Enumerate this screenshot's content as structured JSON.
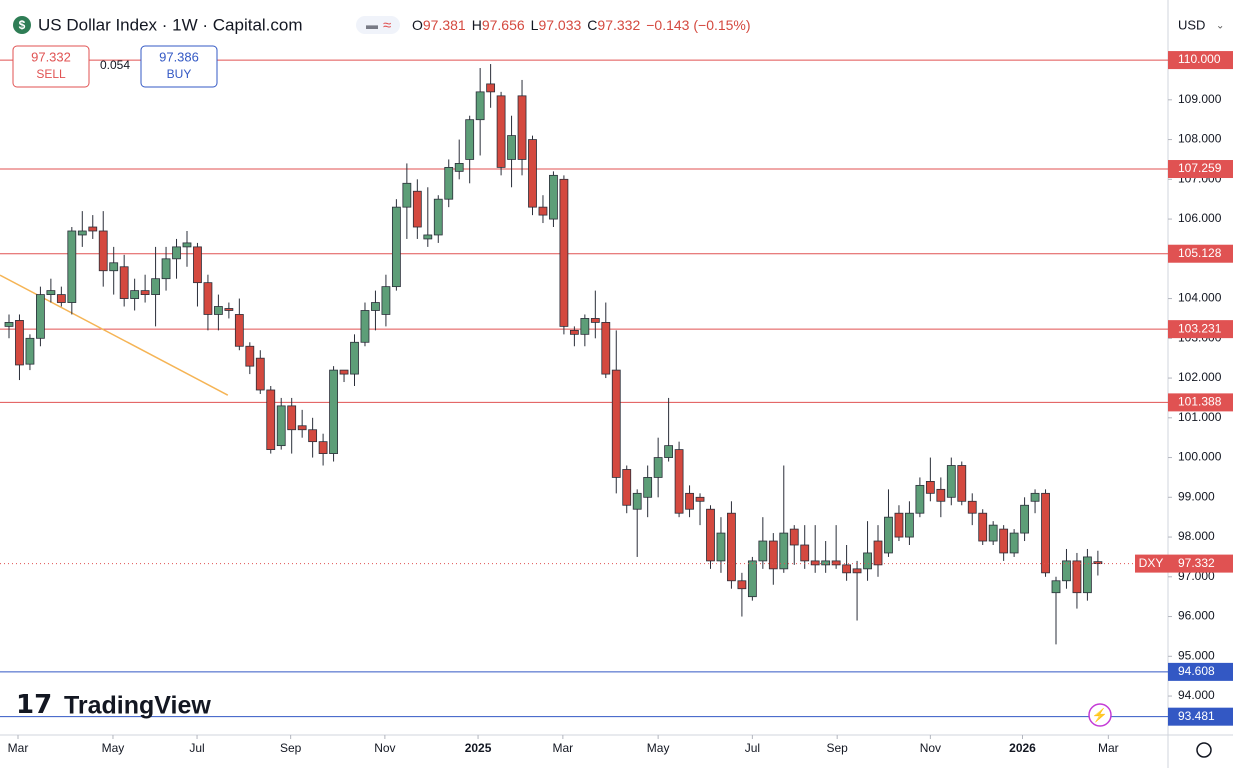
{
  "chart_data": {
    "type": "candlestick",
    "title": "US Dollar Index · 1W · Capital.com",
    "header_ohlc": [
      {
        "label": "O",
        "value": 97.381
      },
      {
        "label": "H",
        "value": 97.656
      },
      {
        "label": "L",
        "value": 97.033
      },
      {
        "label": "C",
        "value": 97.332
      }
    ],
    "header_change": "−0.143 (−0.15%)",
    "sell": {
      "price": 97.332,
      "label": "SELL"
    },
    "spread": 0.054,
    "buy": {
      "price": 97.386,
      "label": "BUY"
    },
    "currency": "USD",
    "brand": "TradingView",
    "up_color": "#5d9e78",
    "down_color": "#d4493f",
    "open": [
      103.3,
      103.45,
      102.35,
      103.0,
      104.1,
      104.1,
      103.9,
      105.6,
      105.8,
      105.7,
      104.7,
      104.8,
      104.0,
      104.2,
      104.1,
      104.5,
      105.0,
      105.3,
      105.3,
      104.4,
      103.6,
      103.75,
      103.6,
      102.8,
      102.5,
      101.7,
      100.3,
      101.3,
      100.8,
      100.7,
      100.4,
      100.1,
      102.2,
      102.1,
      102.9,
      103.7,
      103.6,
      104.3,
      106.3,
      106.7,
      105.5,
      105.6,
      106.5,
      107.2,
      107.5,
      108.5,
      109.4,
      109.1,
      107.5,
      109.1,
      108.0,
      106.3,
      106.0,
      107.0,
      103.2,
      103.1,
      103.5,
      103.4,
      102.2,
      99.7,
      98.7,
      99.0,
      99.5,
      100.0,
      100.2,
      99.1,
      99.0,
      98.7,
      97.4,
      98.6,
      96.9,
      96.5,
      97.4,
      97.9,
      97.2,
      98.2,
      97.8,
      97.4,
      97.3,
      97.4,
      97.3,
      97.2,
      97.2,
      97.9,
      97.6,
      98.6,
      98.0,
      98.6,
      99.4,
      99.2,
      99.0,
      99.8,
      98.9,
      98.6,
      97.9,
      98.2,
      97.6,
      98.1,
      98.9,
      99.1,
      96.6,
      96.9,
      97.4,
      96.6,
      97.381
    ],
    "high": [
      103.6,
      103.6,
      103.1,
      104.3,
      104.5,
      104.3,
      105.8,
      106.2,
      106.1,
      106.2,
      105.3,
      105.1,
      104.5,
      104.6,
      105.3,
      105.3,
      105.5,
      105.7,
      105.4,
      104.6,
      104.1,
      103.9,
      104.0,
      102.9,
      102.7,
      101.8,
      101.5,
      101.5,
      101.2,
      101.0,
      100.6,
      102.3,
      102.2,
      103.1,
      103.9,
      104.2,
      104.6,
      106.5,
      107.4,
      107.0,
      106.8,
      106.6,
      107.5,
      108.0,
      108.6,
      109.8,
      109.9,
      109.2,
      108.6,
      109.5,
      108.1,
      106.6,
      107.2,
      107.1,
      103.3,
      103.6,
      104.2,
      103.9,
      103.2,
      99.8,
      99.2,
      99.8,
      100.5,
      101.5,
      100.4,
      99.3,
      99.1,
      98.8,
      98.5,
      98.9,
      97.1,
      97.5,
      98.5,
      98.1,
      99.8,
      98.3,
      98.3,
      98.3,
      97.9,
      98.3,
      97.8,
      97.4,
      98.4,
      98.3,
      99.2,
      98.8,
      98.9,
      99.5,
      100.0,
      99.5,
      100.0,
      99.9,
      99.1,
      98.7,
      98.4,
      98.3,
      98.2,
      99.0,
      99.2,
      99.2,
      97.0,
      97.7,
      97.6,
      97.7,
      97.656
    ],
    "low": [
      103.0,
      101.95,
      102.2,
      102.8,
      103.9,
      103.8,
      103.6,
      105.3,
      105.5,
      104.3,
      104.1,
      103.8,
      103.7,
      103.9,
      103.3,
      104.2,
      104.5,
      104.8,
      103.8,
      103.2,
      103.2,
      103.5,
      102.7,
      102.1,
      101.6,
      100.1,
      100.2,
      100.1,
      100.5,
      100.0,
      99.8,
      99.9,
      101.9,
      101.8,
      102.8,
      103.2,
      103.3,
      104.2,
      105.5,
      105.5,
      105.3,
      105.4,
      106.3,
      107.0,
      106.9,
      107.6,
      108.8,
      107.1,
      106.8,
      107.1,
      106.1,
      105.9,
      105.8,
      103.1,
      102.8,
      102.8,
      103.0,
      102.0,
      99.1,
      98.6,
      97.5,
      98.5,
      99.0,
      99.9,
      98.5,
      98.5,
      98.3,
      97.2,
      97.1,
      96.7,
      96.0,
      96.4,
      97.2,
      96.8,
      97.1,
      97.3,
      97.2,
      97.1,
      97.1,
      97.2,
      96.9,
      95.9,
      96.9,
      97.0,
      97.5,
      97.9,
      97.8,
      98.5,
      98.9,
      98.5,
      98.8,
      98.8,
      98.3,
      97.8,
      97.8,
      97.4,
      97.5,
      97.9,
      98.6,
      97.0,
      95.3,
      96.7,
      96.2,
      96.4,
      97.033
    ],
    "close": [
      103.4,
      102.33,
      103.0,
      104.1,
      104.2,
      103.9,
      105.7,
      105.7,
      105.7,
      104.7,
      104.9,
      104.0,
      104.2,
      104.1,
      104.5,
      105.0,
      105.3,
      105.4,
      104.4,
      103.6,
      103.8,
      103.7,
      102.8,
      102.3,
      101.7,
      100.2,
      101.3,
      100.7,
      100.7,
      100.4,
      100.1,
      102.2,
      102.1,
      102.9,
      103.7,
      103.9,
      104.3,
      106.3,
      106.9,
      105.8,
      105.6,
      106.5,
      107.3,
      107.4,
      108.5,
      109.2,
      109.2,
      107.3,
      108.1,
      107.5,
      106.3,
      106.1,
      107.1,
      103.3,
      103.1,
      103.5,
      103.4,
      102.1,
      99.5,
      98.8,
      99.1,
      99.5,
      100.0,
      100.3,
      98.6,
      98.7,
      98.9,
      97.4,
      98.1,
      96.9,
      96.7,
      97.4,
      97.9,
      97.2,
      98.1,
      97.8,
      97.4,
      97.3,
      97.4,
      97.3,
      97.1,
      97.1,
      97.6,
      97.3,
      98.5,
      98.0,
      98.6,
      99.3,
      99.1,
      98.9,
      99.8,
      98.9,
      98.6,
      97.9,
      98.3,
      97.6,
      98.1,
      98.8,
      99.1,
      97.1,
      96.9,
      97.4,
      96.6,
      97.5,
      97.332
    ],
    "ylim": [
      93.02,
      111.31
    ],
    "yticks": [
      {
        "value": 94,
        "label": "94.000"
      },
      {
        "value": 95,
        "label": "95.000"
      },
      {
        "value": 96,
        "label": "96.000"
      },
      {
        "value": 97,
        "label": "97.000"
      },
      {
        "value": 98,
        "label": "98.000"
      },
      {
        "value": 99,
        "label": "99.000"
      },
      {
        "value": 100,
        "label": "100.000"
      },
      {
        "value": 101,
        "label": "101.000"
      },
      {
        "value": 102,
        "label": "102.000"
      },
      {
        "value": 103,
        "label": "103.000"
      },
      {
        "value": 104,
        "label": "104.000"
      },
      {
        "value": 105,
        "label": "105.000"
      },
      {
        "value": 106,
        "label": "106.000"
      },
      {
        "value": 107,
        "label": "107.000"
      },
      {
        "value": 108,
        "label": "108.000"
      },
      {
        "value": 109,
        "label": "109.000"
      },
      {
        "value": 110,
        "label": "110.000"
      }
    ],
    "xticks": [
      {
        "value": 0.86,
        "label": "Mar"
      },
      {
        "value": 9.93,
        "label": "May"
      },
      {
        "value": 17.96,
        "label": "Jul"
      },
      {
        "value": 26.9,
        "label": "Sep"
      },
      {
        "value": 35.9,
        "label": "Nov"
      },
      {
        "value": 44.8,
        "label": "2025"
      },
      {
        "value": 52.9,
        "label": "Mar"
      },
      {
        "value": 62.0,
        "label": "May"
      },
      {
        "value": 71.0,
        "label": "Jul"
      },
      {
        "value": 79.1,
        "label": "Sep"
      },
      {
        "value": 88.0,
        "label": "Nov"
      },
      {
        "value": 96.8,
        "label": "2026"
      },
      {
        "value": 105.0,
        "label": "Mar"
      }
    ],
    "levels": [
      {
        "value": 110,
        "label": "110.000",
        "color": "#e05252"
      },
      {
        "value": 107.259,
        "label": "107.259",
        "color": "#e05252"
      },
      {
        "value": 105.128,
        "label": "105.128",
        "color": "#e05252"
      },
      {
        "value": 103.231,
        "label": "103.231",
        "color": "#e05252"
      },
      {
        "value": 101.388,
        "label": "101.388",
        "color": "#e05252"
      },
      {
        "value": 94.608,
        "label": "94.608",
        "color": "#3358c4"
      },
      {
        "value": 93.481,
        "label": "93.481",
        "color": "#3358c4"
      }
    ],
    "current": {
      "label": "DXY",
      "value": 97.332,
      "color": "#e05252"
    },
    "trendline": {
      "color": "#f5b455",
      "x": [
        -0.86,
        20.9
      ],
      "y": [
        104.59,
        101.57
      ]
    }
  }
}
